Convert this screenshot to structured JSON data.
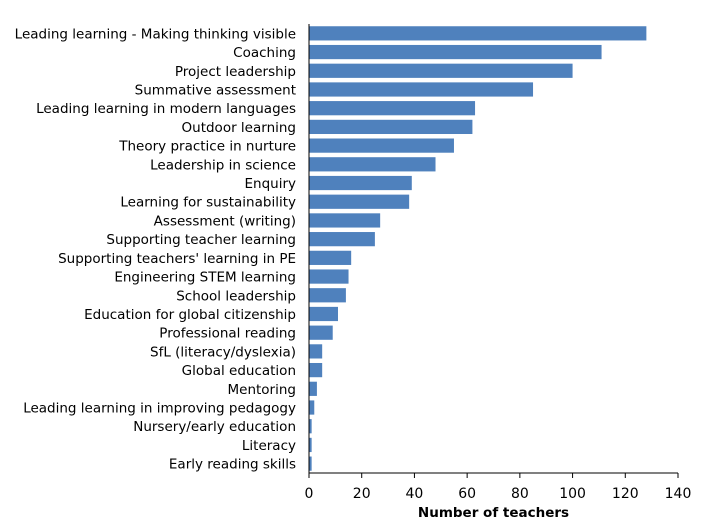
{
  "chart_data": {
    "type": "bar",
    "orientation": "horizontal",
    "title": "",
    "xlabel": "Number of teachers",
    "ylabel": "",
    "xlim": [
      0,
      140
    ],
    "xticks": [
      0,
      20,
      40,
      60,
      80,
      100,
      120,
      140
    ],
    "grid": false,
    "legend": "none",
    "bar_color": "#4F81BD",
    "categories": [
      "Leading learning - Making thinking visible",
      "Coaching",
      "Project leadership",
      "Summative assessment",
      "Leading learning in modern languages",
      "Outdoor learning",
      "Theory practice in nurture",
      "Leadership in science",
      "Enquiry",
      "Learning for sustainability",
      "Assessment (writing)",
      "Supporting teacher learning",
      "Supporting teachers' learning in PE",
      "Engineering STEM learning",
      "School leadership",
      "Education for global citizenship",
      "Professional reading",
      "SfL (literacy/dyslexia)",
      "Global education",
      "Mentoring",
      "Leading learning in improving pedagogy",
      "Nursery/early education",
      "Literacy",
      "Early reading skills"
    ],
    "values": [
      128,
      111,
      100,
      85,
      63,
      62,
      55,
      48,
      39,
      38,
      27,
      25,
      16,
      15,
      14,
      11,
      9,
      5,
      5,
      3,
      2,
      1,
      1,
      1
    ]
  }
}
